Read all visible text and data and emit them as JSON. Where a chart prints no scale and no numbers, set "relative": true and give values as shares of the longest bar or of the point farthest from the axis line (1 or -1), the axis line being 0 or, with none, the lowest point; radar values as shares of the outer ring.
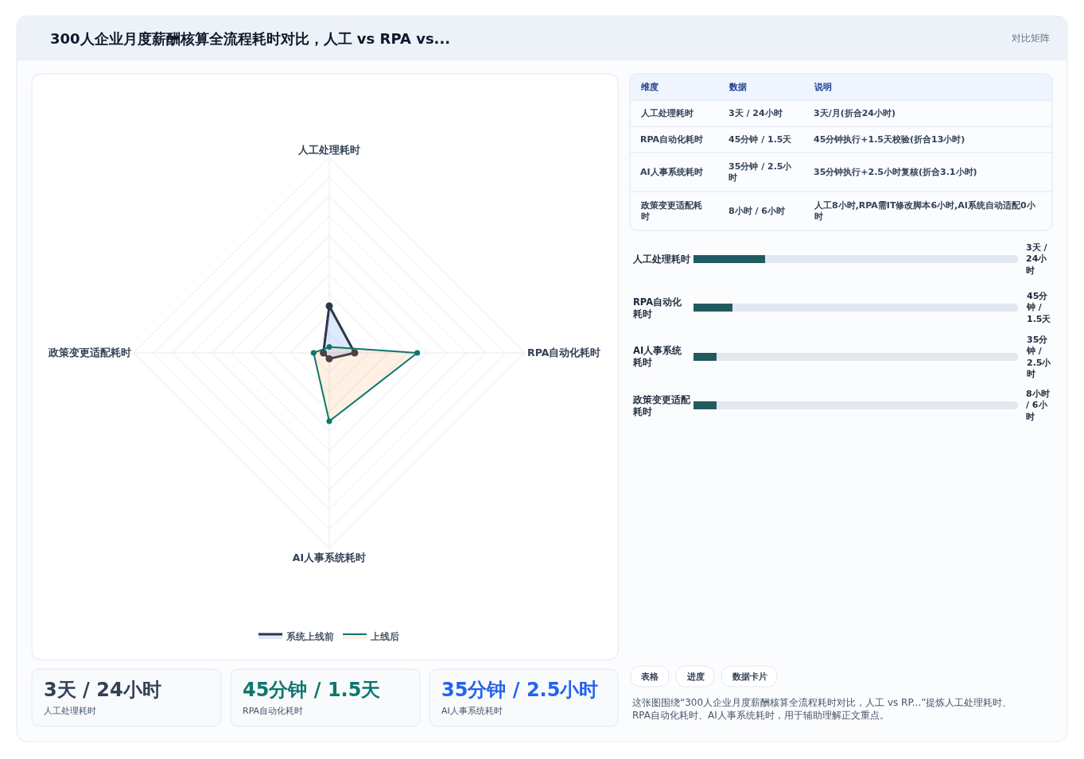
{
  "chart_data": [
    {
      "type": "radar",
      "title": "300人企业月度薪酬核算全流程耗时对比，人工 vs RPA vs...",
      "annotations": [
        "对比矩阵"
      ],
      "categories": [
        "人工处理耗时",
        "RPA自动化耗时",
        "AI人事系统耗时",
        "政策变更适配耗时"
      ],
      "relative": true,
      "grid": true,
      "legend": "bottom",
      "marker": "circle",
      "series": [
        {
          "name": "系统上线前",
          "color": "#2d3748",
          "values": [
            0.24,
            0.13,
            0.03,
            0.03
          ]
        },
        {
          "name": "上线后",
          "color": "#0f766e",
          "values": [
            0.03,
            0.45,
            0.35,
            0.08
          ]
        }
      ]
    },
    {
      "type": "other",
      "categories": [
        "维度",
        "数据",
        "说明"
      ],
      "cell_labels": [
        [
          "人工处理耗时",
          "3天 / 24小时",
          "3天/月(折合24小时)"
        ],
        [
          "RPA自动化耗时",
          "45分钟 / 1.5天",
          "45分钟执行+1.5天校验(折合13小时)"
        ],
        [
          "AI人事系统耗时",
          "35分钟 / 2.5小时",
          "35分钟执行+2.5小时复核(折合3.1小时)"
        ],
        [
          "政策变更适配耗时",
          "8小时 / 6小时",
          "人工8小时,RPA需IT修改脚本6小时,AI系统自动适配0小时"
        ]
      ]
    },
    {
      "type": "bar",
      "orientation": "horizontal",
      "stacked": true,
      "relative": true,
      "categories": [
        "人工处理耗时",
        "RPA自动化耗时",
        "AI人事系统耗时",
        "政策变更适配耗时"
      ],
      "y2_categories": [
        "3天 / 24小时",
        "45分钟 / 1.5天",
        "35分钟 / 2.5小时",
        "8小时 / 6小时"
      ],
      "series": [
        {
          "color": "#215b61",
          "values": [
            0.22,
            0.12,
            0.07,
            0.07
          ]
        },
        {
          "color": "#e2e8f0",
          "values": [
            0.78,
            0.88,
            0.93,
            0.93
          ]
        }
      ]
    },
    {
      "type": "other",
      "annotations": [
        "3天 / 24小时",
        "人工处理耗时",
        "45分钟 / 1.5天",
        "RPA自动化耗时",
        "35分钟 / 2.5小时",
        "AI人事系统耗时"
      ],
      "colors": [
        "#334155",
        "#0f766e",
        "#2563eb"
      ]
    },
    {
      "type": "other",
      "categories": [
        "表格",
        "进度",
        "数据卡片"
      ],
      "annotations": [
        "这张图围绕“300人企业月度薪酬核算全流程耗时对比，人工 vs RP...”提炼人工处理耗时、RPA自动化耗时、AI人事系统耗时，用于辅助理解正文重点。"
      ]
    }
  ]
}
